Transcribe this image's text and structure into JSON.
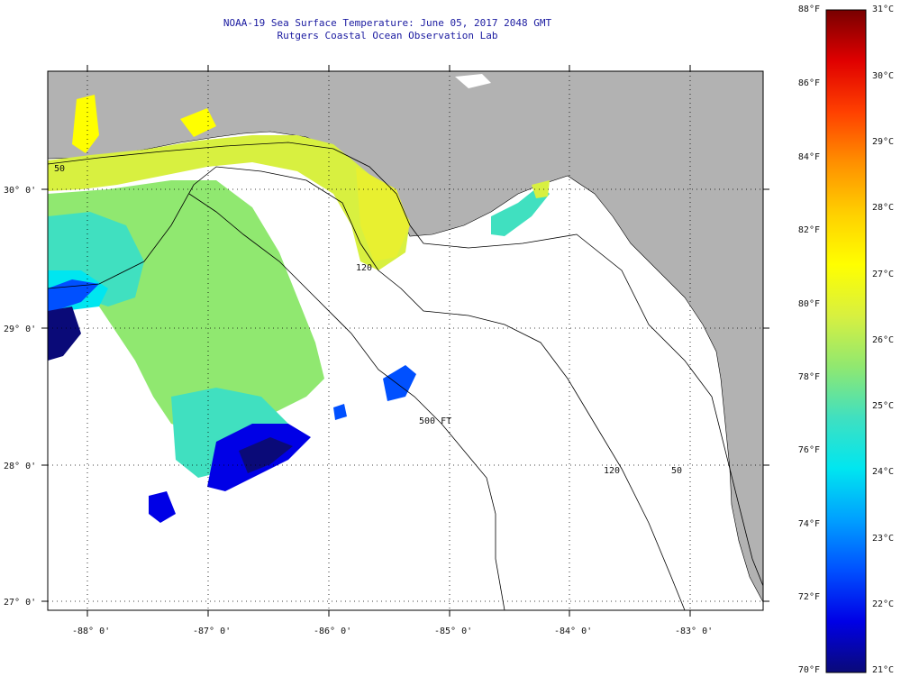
{
  "header": {
    "title": "NOAA-19 Sea Surface Temperature:  June 05, 2017 2048 GMT",
    "subtitle": "Rutgers Coastal Ocean Observation Lab"
  },
  "map": {
    "lon_labels": [
      "-88° 0'",
      "-87° 0'",
      "-86° 0'",
      "-85° 0'",
      "-84° 0'",
      "-83° 0'"
    ],
    "lat_labels": [
      "30° 0'",
      "29° 0'",
      "28° 0'",
      "27° 0'"
    ],
    "contour_labels": [
      "50",
      "120",
      "500 FT",
      "120",
      "50"
    ],
    "land_color": "#b2b2b2",
    "no_data_color": "#ffffff"
  },
  "colorbar": {
    "fahrenheit_labels": [
      "88°F",
      "86°F",
      "84°F",
      "82°F",
      "80°F",
      "78°F",
      "76°F",
      "74°F",
      "72°F",
      "70°F"
    ],
    "celsius_labels": [
      "31°C",
      "30°C",
      "29°C",
      "28°C",
      "27°C",
      "26°C",
      "25°C",
      "24°C",
      "23°C",
      "22°C",
      "21°C"
    ],
    "colors": [
      "#0a0a78",
      "#0000e6",
      "#0050ff",
      "#00a0ff",
      "#00e6f0",
      "#40e0c0",
      "#90e870",
      "#d8f040",
      "#ffff00",
      "#ffd000",
      "#ff9000",
      "#ff4000",
      "#e00000",
      "#780000"
    ]
  }
}
